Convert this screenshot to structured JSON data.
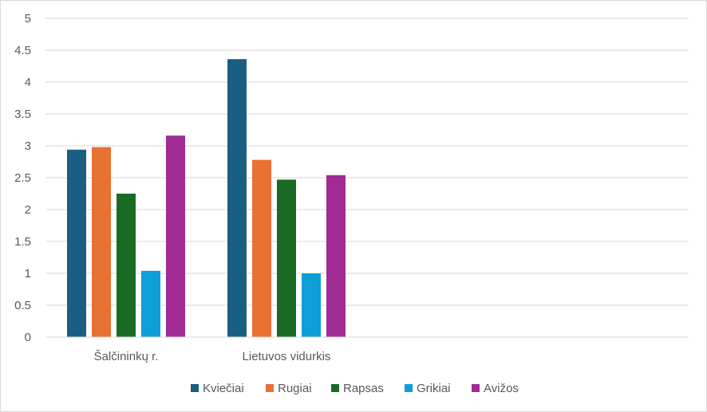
{
  "chart_data": {
    "type": "bar",
    "title": "",
    "xlabel": "",
    "ylabel": "",
    "categories": [
      "Šalčininkų r.",
      "Lietuvos vidurkis"
    ],
    "series": [
      {
        "name": "Kviečiai",
        "color": "#1a5e82",
        "values": [
          2.94,
          4.36
        ]
      },
      {
        "name": "Rugiai",
        "color": "#e97132",
        "values": [
          2.98,
          2.78
        ]
      },
      {
        "name": "Rapsas",
        "color": "#196b24",
        "values": [
          2.25,
          2.47
        ]
      },
      {
        "name": "Grikiai",
        "color": "#0f9ed5",
        "values": [
          1.04,
          1.0
        ]
      },
      {
        "name": "Avižos",
        "color": "#a02b93",
        "values": [
          3.16,
          2.54
        ]
      }
    ],
    "ylim": [
      0,
      5
    ],
    "yticks": [
      "0",
      "0.5",
      "1",
      "1.5",
      "2",
      "2.5",
      "3",
      "3.5",
      "4",
      "4.5",
      "5"
    ],
    "grid": true,
    "legend_position": "bottom"
  }
}
